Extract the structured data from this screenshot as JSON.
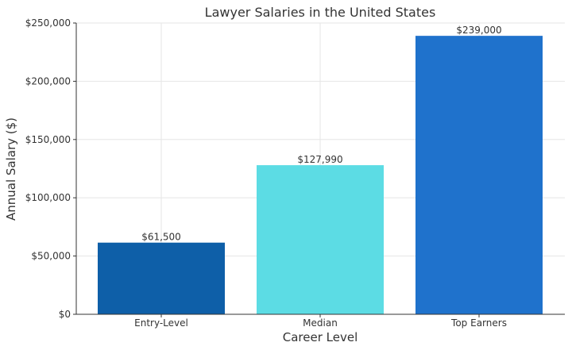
{
  "chart_data": {
    "type": "bar",
    "title": "Lawyer Salaries in the United States",
    "xlabel": "Career Level",
    "ylabel": "Annual Salary ($)",
    "categories": [
      "Entry-Level",
      "Median",
      "Top Earners"
    ],
    "values": [
      61500,
      127990,
      239000
    ],
    "value_labels": [
      "$61,500",
      "$127,990",
      "$239,000"
    ],
    "colors": [
      "#0e5fa8",
      "#5cdce4",
      "#1f72cc"
    ],
    "ylim": [
      0,
      250000
    ],
    "yticks": [
      0,
      50000,
      100000,
      150000,
      200000,
      250000
    ],
    "ytick_labels": [
      "$0",
      "$50,000",
      "$100,000",
      "$150,000",
      "$200,000",
      "$250,000"
    ],
    "grid": true
  }
}
